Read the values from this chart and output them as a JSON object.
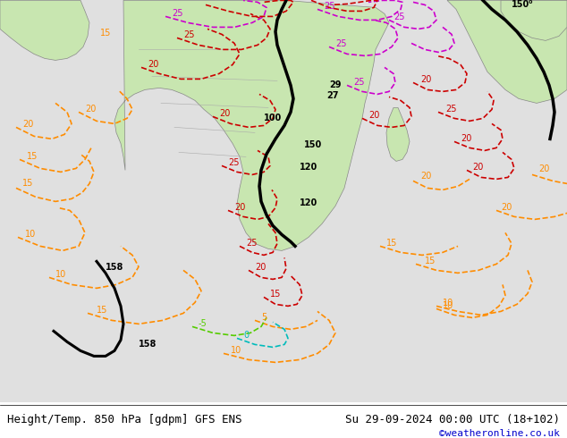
{
  "title_left": "Height/Temp. 850 hPa [gdpm] GFS ENS",
  "title_right": "Su 29-09-2024 00:00 UTC (18+102)",
  "credit": "©weatheronline.co.uk",
  "bg_color": "#e8e8e8",
  "land_color": "#c8e6b0",
  "border_color": "#aaaaaa",
  "title_fontsize": 9,
  "credit_color": "#0000cc",
  "fig_width": 6.34,
  "fig_height": 4.9,
  "dpi": 100
}
